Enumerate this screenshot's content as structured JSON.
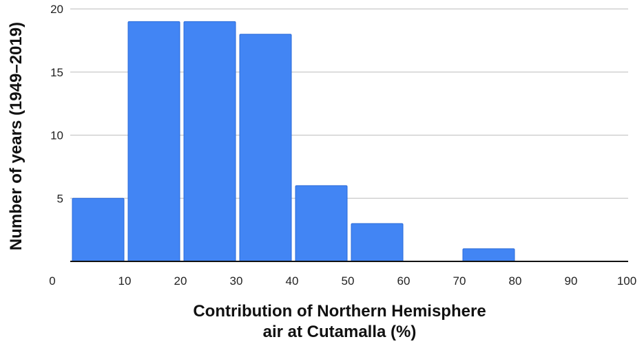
{
  "chart_data": {
    "type": "bar",
    "bins": [
      {
        "x0": 0,
        "x1": 10,
        "value": 5
      },
      {
        "x0": 10,
        "x1": 20,
        "value": 19
      },
      {
        "x0": 20,
        "x1": 30,
        "value": 19
      },
      {
        "x0": 30,
        "x1": 40,
        "value": 18
      },
      {
        "x0": 40,
        "x1": 50,
        "value": 6
      },
      {
        "x0": 50,
        "x1": 60,
        "value": 3
      },
      {
        "x0": 60,
        "x1": 70,
        "value": 0
      },
      {
        "x0": 70,
        "x1": 80,
        "value": 1
      },
      {
        "x0": 80,
        "x1": 90,
        "value": 0
      },
      {
        "x0": 90,
        "x1": 100,
        "value": 0
      }
    ],
    "x_ticks": [
      "0",
      "10",
      "20",
      "30",
      "40",
      "50",
      "60",
      "70",
      "80",
      "90",
      "100"
    ],
    "y_ticks": [
      "5",
      "10",
      "15",
      "20"
    ],
    "xlim": [
      0,
      100
    ],
    "ylim": [
      0,
      20
    ],
    "title": "",
    "xlabel_line1": "Contribution of Northern Hemisphere",
    "xlabel_line2": "air at Cutamalla (%)",
    "ylabel": "Number of years (1949–2019)",
    "grid": "horizontal",
    "legend": "none",
    "bar_color": "#4285f4",
    "bar_edge_color": "#2a6ad8",
    "grid_color": "#c8c8c8",
    "axis_color": "#111111"
  }
}
